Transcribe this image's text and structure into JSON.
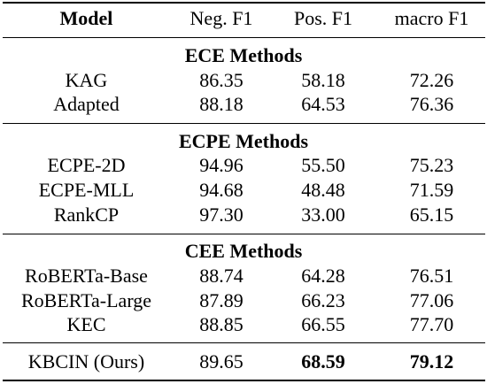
{
  "header": {
    "model": "Model",
    "neg": "Neg. F1",
    "pos": "Pos. F1",
    "macro": "macro F1"
  },
  "sections": [
    {
      "title": "ECE Methods",
      "rows": [
        {
          "model": "KAG",
          "neg": "86.35",
          "pos": "58.18",
          "macro": "72.26"
        },
        {
          "model": "Adapted",
          "neg": "88.18",
          "pos": "64.53",
          "macro": "76.36"
        }
      ]
    },
    {
      "title": "ECPE Methods",
      "rows": [
        {
          "model": "ECPE-2D",
          "neg": "94.96",
          "pos": "55.50",
          "macro": "75.23"
        },
        {
          "model": "ECPE-MLL",
          "neg": "94.68",
          "pos": "48.48",
          "macro": "71.59"
        },
        {
          "model": "RankCP",
          "neg": "97.30",
          "pos": "33.00",
          "macro": "65.15"
        }
      ]
    },
    {
      "title": "CEE Methods",
      "rows": [
        {
          "model": "RoBERTa-Base",
          "neg": "88.74",
          "pos": "64.28",
          "macro": "76.51"
        },
        {
          "model": "RoBERTa-Large",
          "neg": "87.89",
          "pos": "66.23",
          "macro": "77.06"
        },
        {
          "model": "KEC",
          "neg": "88.85",
          "pos": "66.55",
          "macro": "77.70"
        }
      ]
    }
  ],
  "final": {
    "model": "KBCIN (Ours)",
    "neg": "89.65",
    "pos": "68.59",
    "macro": "79.12"
  }
}
